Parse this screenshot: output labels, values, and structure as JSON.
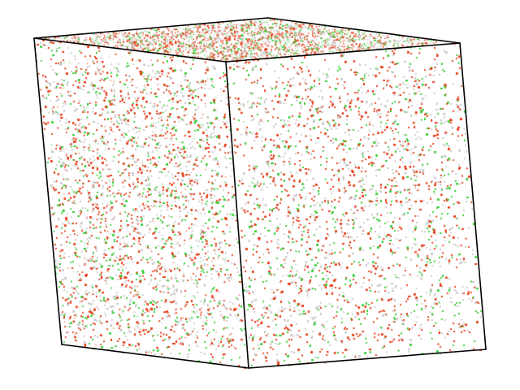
{
  "scene": {
    "type": "3d-particle-simulation-box",
    "background_color": "#ffffff",
    "edge_color": "#000000",
    "particle_types": [
      {
        "color": "#e63a14",
        "weight": 0.42
      },
      {
        "color": "#c8c8c8",
        "weight": 0.36
      },
      {
        "color": "#33cc33",
        "weight": 0.22
      }
    ],
    "particle_density": "high"
  }
}
